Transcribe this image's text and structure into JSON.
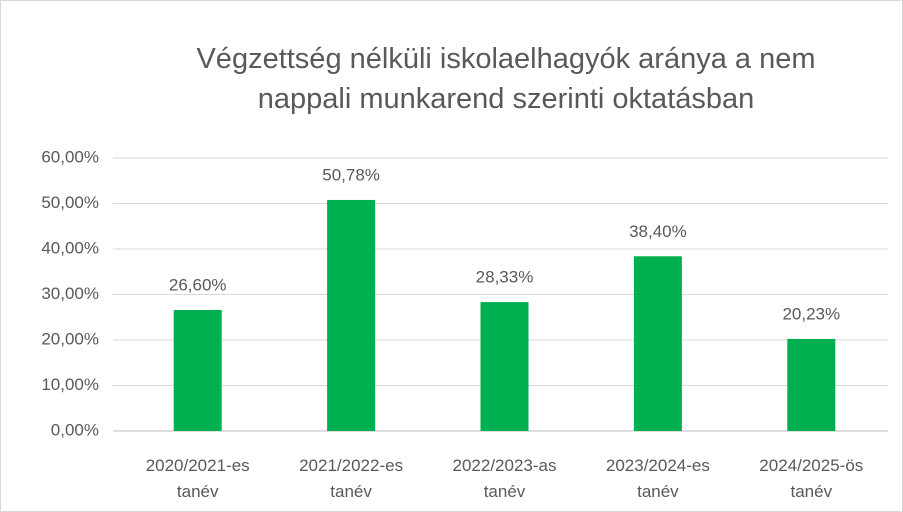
{
  "chart_data": {
    "type": "bar",
    "title": "Végzettség nélküli iskolaelhagyók aránya a nem nappali munkarend szerinti oktatásban",
    "categories": [
      "2020/2021-es tanév",
      "2021/2022-es tanév",
      "2022/2023-as tanév",
      "2023/2024-es tanév",
      "2024/2025-ös tanév"
    ],
    "values": [
      26.6,
      50.78,
      28.33,
      38.4,
      20.23
    ],
    "value_labels": [
      "26,60%",
      "50,78%",
      "28,33%",
      "38,40%",
      "20,23%"
    ],
    "color": "#00b050",
    "ylim": [
      0,
      60
    ],
    "yticks": [
      {
        "value": 0,
        "label": "0,00%"
      },
      {
        "value": 10,
        "label": "10,00%"
      },
      {
        "value": 20,
        "label": "20,00%"
      },
      {
        "value": 30,
        "label": "30,00%"
      },
      {
        "value": 40,
        "label": "40,00%"
      },
      {
        "value": 50,
        "label": "50,00%"
      },
      {
        "value": 60,
        "label": "60,00%"
      }
    ],
    "grid": true
  }
}
